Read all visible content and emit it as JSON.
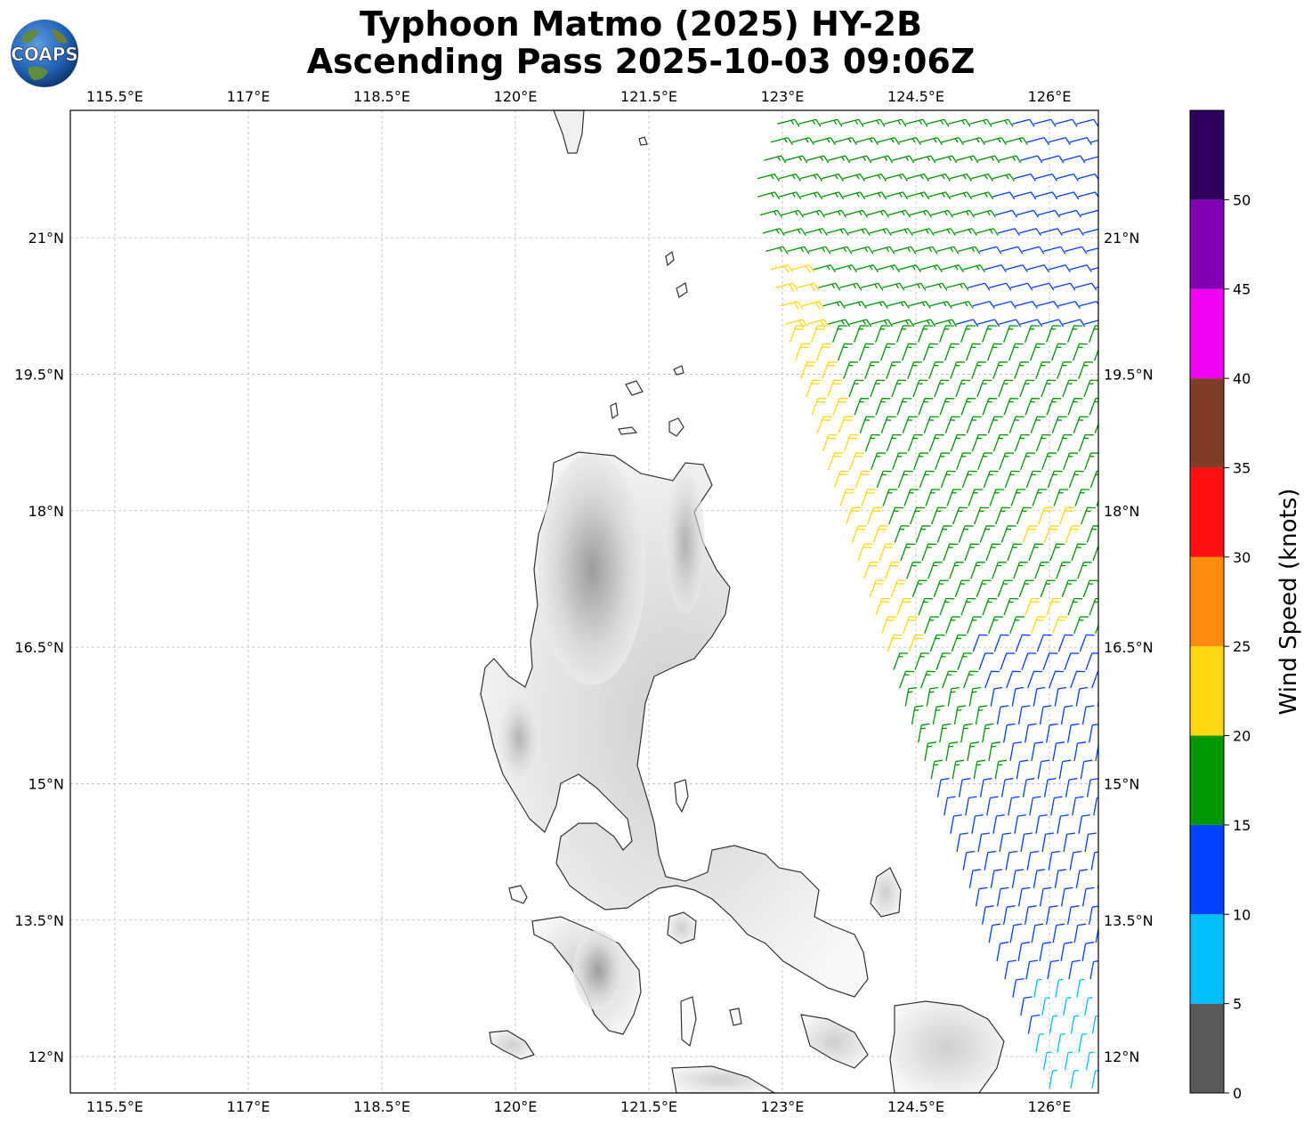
{
  "title": {
    "line1": "Typhoon Matmo (2025) HY-2B",
    "line2": "Ascending Pass 2025-10-03 09:06Z"
  },
  "logo": {
    "text": "COAPS",
    "icon": "globe-logo-icon"
  },
  "map": {
    "lon_range": [
      115.0,
      126.55
    ],
    "lat_range": [
      11.6,
      22.4
    ],
    "lon_ticks": [
      "115.5°E",
      "117°E",
      "118.5°E",
      "120°E",
      "121.5°E",
      "123°E",
      "124.5°E",
      "126°E"
    ],
    "lon_tick_values": [
      115.5,
      117,
      118.5,
      120,
      121.5,
      123,
      124.5,
      126
    ],
    "lat_ticks": [
      "21°N",
      "19.5°N",
      "18°N",
      "16.5°N",
      "15°N",
      "13.5°N",
      "12°N"
    ],
    "lat_tick_values": [
      21,
      19.5,
      18,
      16.5,
      15,
      13.5,
      12
    ],
    "gridlines": true,
    "coastline_color": "#333333",
    "terrain": "grayscale shaded relief"
  },
  "colorbar": {
    "label": "Wind Speed (knots)",
    "tick_labels": [
      "0",
      "5",
      "10",
      "15",
      "20",
      "25",
      "30",
      "35",
      "40",
      "45",
      "50"
    ],
    "bins": [
      {
        "min": 0,
        "max": 5,
        "color": "#595959"
      },
      {
        "min": 5,
        "max": 10,
        "color": "#00bfff"
      },
      {
        "min": 10,
        "max": 15,
        "color": "#0040ff"
      },
      {
        "min": 15,
        "max": 20,
        "color": "#009600"
      },
      {
        "min": 20,
        "max": 25,
        "color": "#ffd713"
      },
      {
        "min": 25,
        "max": 30,
        "color": "#ff8c0f"
      },
      {
        "min": 30,
        "max": 35,
        "color": "#ff1010"
      },
      {
        "min": 35,
        "max": 40,
        "color": "#7f3d28"
      },
      {
        "min": 40,
        "max": 45,
        "color": "#f000f0"
      },
      {
        "min": 45,
        "max": 50,
        "color": "#8200b4"
      },
      {
        "min": 50,
        "max": 55,
        "color": "#2d005a"
      }
    ]
  },
  "wind_swath": {
    "west_edge": [
      [
        22.4,
        123.0
      ],
      [
        21.6,
        122.7
      ],
      [
        20.9,
        122.8
      ],
      [
        19.8,
        123.1
      ],
      [
        18.5,
        123.5
      ],
      [
        17.0,
        124.0
      ],
      [
        15.8,
        124.4
      ],
      [
        14.7,
        124.8
      ],
      [
        13.3,
        125.3
      ],
      [
        12.4,
        125.7
      ],
      [
        11.7,
        126.0
      ]
    ],
    "wind_direction_deg": "northeasterly to northerly",
    "speed_zones_knots": [
      {
        "zone": "northeast",
        "speed": 12
      },
      {
        "zone": "north-central",
        "speed": 17
      },
      {
        "zone": "western strip",
        "speed": 22
      },
      {
        "zone": "south",
        "speed": 12
      },
      {
        "zone": "far south",
        "speed": 8
      }
    ]
  },
  "land_labels": []
}
